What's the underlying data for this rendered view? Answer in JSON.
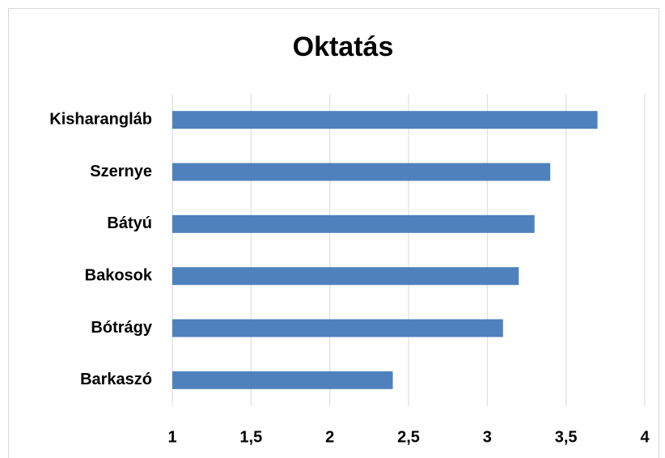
{
  "chart_data": {
    "type": "barh",
    "title": "Oktatás",
    "categories": [
      "Kisharangláb",
      "Szernye",
      "Bátyú",
      "Bakosok",
      "Bótrágy",
      "Barkaszó"
    ],
    "values": [
      3.7,
      3.4,
      3.3,
      3.2,
      3.1,
      2.4
    ],
    "color": "#4f81bd",
    "xlim": [
      1,
      4
    ],
    "xticks": [
      1,
      {
        "value": 1.5,
        "label": "1,5"
      },
      2,
      {
        "value": 2.5,
        "label": "2,5"
      },
      3,
      {
        "value": 3.5,
        "label": "3,5"
      },
      4
    ],
    "grid": true
  }
}
